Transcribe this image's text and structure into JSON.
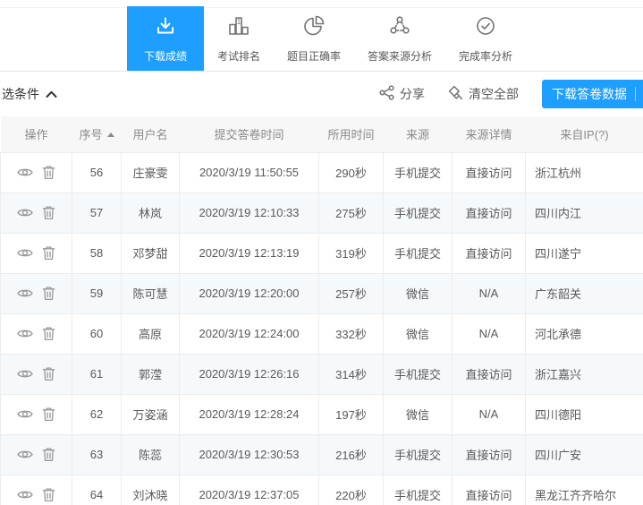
{
  "tabs": [
    {
      "label": "下载成绩",
      "icon": "download-icon",
      "active": true
    },
    {
      "label": "考试排名",
      "icon": "ranking-bars-icon",
      "active": false
    },
    {
      "label": "题目正确率",
      "icon": "pie-chart-icon",
      "active": false
    },
    {
      "label": "答案来源分析",
      "icon": "network-nodes-icon",
      "active": false
    },
    {
      "label": "完成率分析",
      "icon": "check-circle-icon",
      "active": false
    }
  ],
  "toolbar": {
    "filter_label": "选条件",
    "filter_icon": "chevron-up-icon",
    "share_label": "分享",
    "share_icon": "share-nodes-icon",
    "clear_label": "清空全部",
    "clear_icon": "clear-diamonds-icon",
    "download_button_label": "下载答卷数据"
  },
  "colors": {
    "accent": "#1E9FFF",
    "header_bg": "#f7f7f7",
    "row_stripe": "#f5f9fc",
    "border": "#ececec"
  },
  "table": {
    "columns": [
      {
        "label": "操作"
      },
      {
        "label": "序号",
        "sort": "asc"
      },
      {
        "label": "用户名"
      },
      {
        "label": "提交答卷时间"
      },
      {
        "label": "所用时间"
      },
      {
        "label": "来源"
      },
      {
        "label": "来源详情"
      },
      {
        "label": "来自IP(?)"
      }
    ],
    "row_action_icons": [
      "view-eye-icon",
      "delete-trash-icon"
    ],
    "rows": [
      {
        "seq": "56",
        "user": "庄豪雯",
        "submit_time": "2020/3/19 11:50:55",
        "duration": "290秒",
        "source": "手机提交",
        "source_detail": "直接访问",
        "ip_location": "浙江杭州"
      },
      {
        "seq": "57",
        "user": "林岚",
        "submit_time": "2020/3/19 12:10:33",
        "duration": "275秒",
        "source": "手机提交",
        "source_detail": "直接访问",
        "ip_location": "四川内江"
      },
      {
        "seq": "58",
        "user": "邓梦甜",
        "submit_time": "2020/3/19 12:13:19",
        "duration": "319秒",
        "source": "手机提交",
        "source_detail": "直接访问",
        "ip_location": "四川遂宁"
      },
      {
        "seq": "59",
        "user": "陈可慧",
        "submit_time": "2020/3/19 12:20:00",
        "duration": "257秒",
        "source": "微信",
        "source_detail": "N/A",
        "ip_location": "广东韶关"
      },
      {
        "seq": "60",
        "user": "高原",
        "submit_time": "2020/3/19 12:24:00",
        "duration": "332秒",
        "source": "微信",
        "source_detail": "N/A",
        "ip_location": "河北承德"
      },
      {
        "seq": "61",
        "user": "郭滢",
        "submit_time": "2020/3/19 12:26:16",
        "duration": "314秒",
        "source": "手机提交",
        "source_detail": "直接访问",
        "ip_location": "浙江嘉兴"
      },
      {
        "seq": "62",
        "user": "万姿涵",
        "submit_time": "2020/3/19 12:28:24",
        "duration": "197秒",
        "source": "微信",
        "source_detail": "N/A",
        "ip_location": "四川德阳"
      },
      {
        "seq": "63",
        "user": "陈蕊",
        "submit_time": "2020/3/19 12:30:53",
        "duration": "216秒",
        "source": "手机提交",
        "source_detail": "直接访问",
        "ip_location": "四川广安"
      },
      {
        "seq": "64",
        "user": "刘沐晓",
        "submit_time": "2020/3/19 12:37:05",
        "duration": "220秒",
        "source": "手机提交",
        "source_detail": "直接访问",
        "ip_location": "黑龙江齐齐哈尔"
      }
    ]
  }
}
